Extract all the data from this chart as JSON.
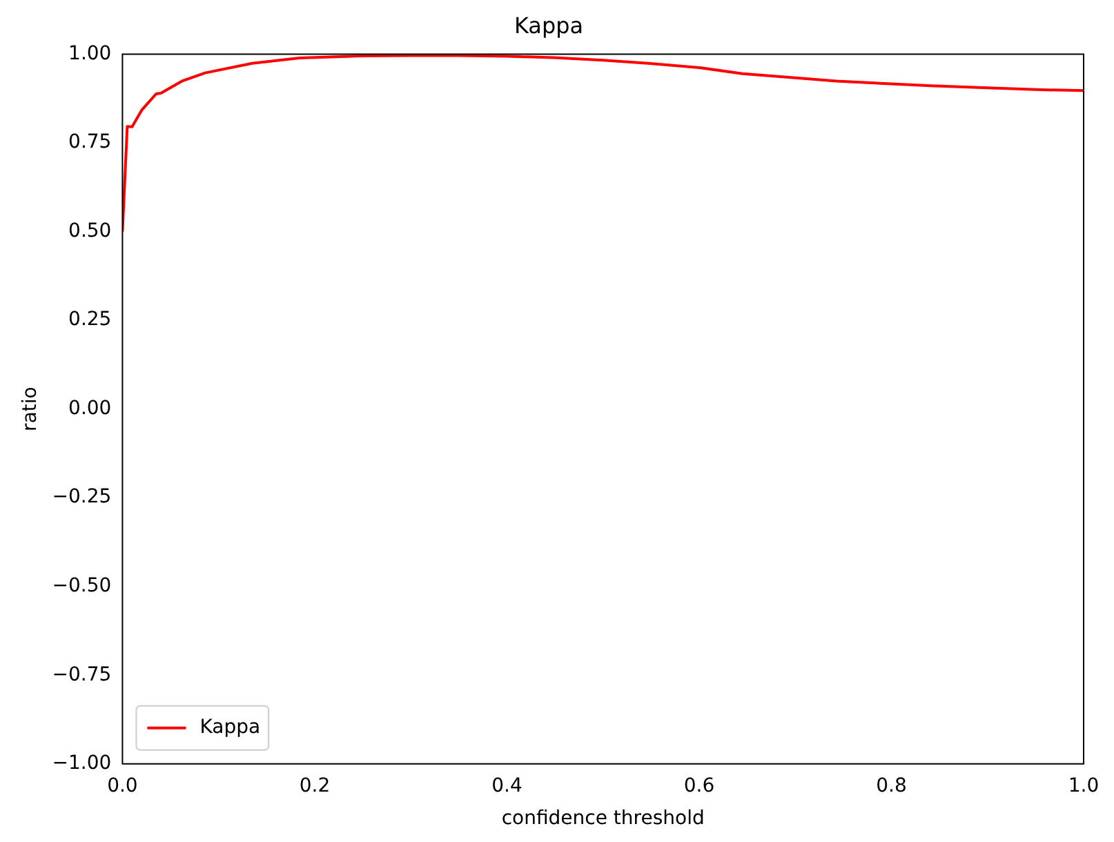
{
  "chart_data": {
    "type": "line",
    "title": "Kappa",
    "xlabel": "confidence threshold",
    "ylabel": "ratio",
    "series": [
      {
        "name": "Kappa",
        "color": "#ff0000",
        "x": [
          0,
          0.005,
          0.01,
          0.02,
          0.035,
          0.04,
          0.062,
          0.086,
          0.135,
          0.184,
          0.25,
          0.3,
          0.35,
          0.4,
          0.449,
          0.5,
          0.547,
          0.6,
          0.645,
          0.7,
          0.743,
          0.8,
          0.841,
          0.9,
          0.95,
          1.0
        ],
        "values": [
          0.5,
          0.796,
          0.795,
          0.842,
          0.888,
          0.89,
          0.924,
          0.947,
          0.974,
          0.989,
          0.995,
          0.996,
          0.996,
          0.994,
          0.99,
          0.983,
          0.974,
          0.962,
          0.945,
          0.933,
          0.924,
          0.916,
          0.911,
          0.905,
          0.9,
          0.897
        ]
      }
    ],
    "xlim": [
      0,
      1
    ],
    "ylim": [
      -1,
      1
    ],
    "xticks": [
      {
        "value": 0,
        "label": "0.0"
      },
      {
        "value": 0.2,
        "label": "0.2"
      },
      {
        "value": 0.4,
        "label": "0.4"
      },
      {
        "value": 0.6,
        "label": "0.6"
      },
      {
        "value": 0.8,
        "label": "0.8"
      },
      {
        "value": 1,
        "label": "1.0"
      }
    ],
    "yticks": [
      {
        "value": -1,
        "label": "−1.00"
      },
      {
        "value": -0.75,
        "label": "−0.75"
      },
      {
        "value": -0.5,
        "label": "−0.50"
      },
      {
        "value": -0.25,
        "label": "−0.25"
      },
      {
        "value": 0,
        "label": "0.00"
      },
      {
        "value": 0.25,
        "label": "0.25"
      },
      {
        "value": 0.5,
        "label": "0.50"
      },
      {
        "value": 0.75,
        "label": "0.75"
      },
      {
        "value": 1,
        "label": "1.00"
      }
    ],
    "legend": "bottom left",
    "grid": false,
    "marker": "none",
    "line_style": "solid"
  }
}
